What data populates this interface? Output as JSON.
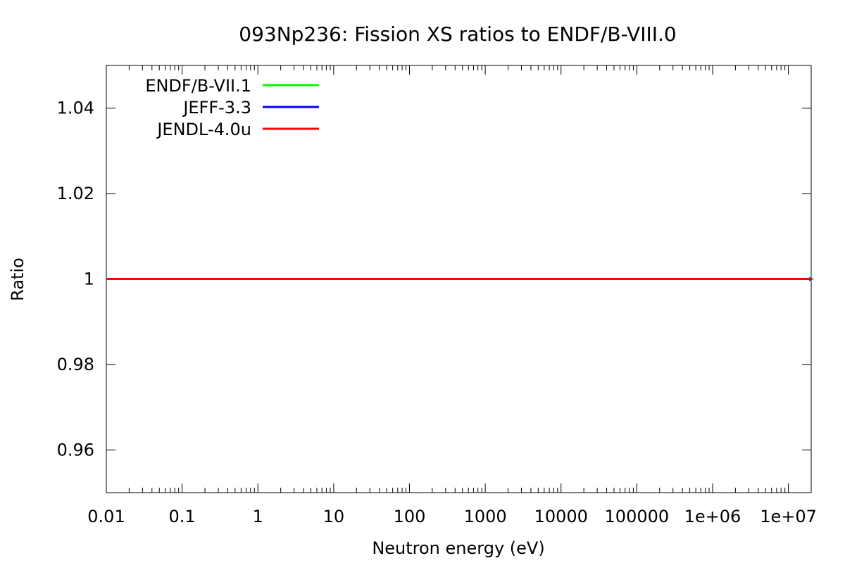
{
  "chart_data": {
    "type": "line",
    "title": "093Np236: Fission XS ratios to ENDF/B-VIII.0",
    "xlabel": "Neutron energy (eV)",
    "ylabel": "Ratio",
    "xscale": "log",
    "xlim": [
      0.01,
      20000000
    ],
    "ylim": [
      0.95,
      1.05
    ],
    "x_tick_values": [
      0.01,
      0.1,
      1,
      10,
      100,
      1000,
      10000,
      100000,
      1000000,
      10000000
    ],
    "x_tick_labels": [
      "0.01",
      "0.1",
      "1",
      "10",
      "100",
      "1000",
      "10000",
      "100000",
      "1e+06",
      "1e+07"
    ],
    "y_tick_values": [
      0.96,
      0.98,
      1.0,
      1.02,
      1.04
    ],
    "y_tick_labels": [
      "0.96",
      "0.98",
      "1",
      "1.02",
      "1.04"
    ],
    "grid": false,
    "legend_position": "top-left",
    "series": [
      {
        "name": "ENDF/B-VII.1",
        "color": "#00ff00",
        "x": [
          0.01,
          20000000
        ],
        "y": [
          1.0,
          1.0
        ]
      },
      {
        "name": "JEFF-3.3",
        "color": "#0000ff",
        "x": [
          0.01,
          20000000
        ],
        "y": [
          1.0,
          1.0
        ]
      },
      {
        "name": "JENDL-4.0u",
        "color": "#ff0000",
        "x": [
          0.01,
          20000000
        ],
        "y": [
          1.0,
          1.0
        ]
      }
    ]
  }
}
